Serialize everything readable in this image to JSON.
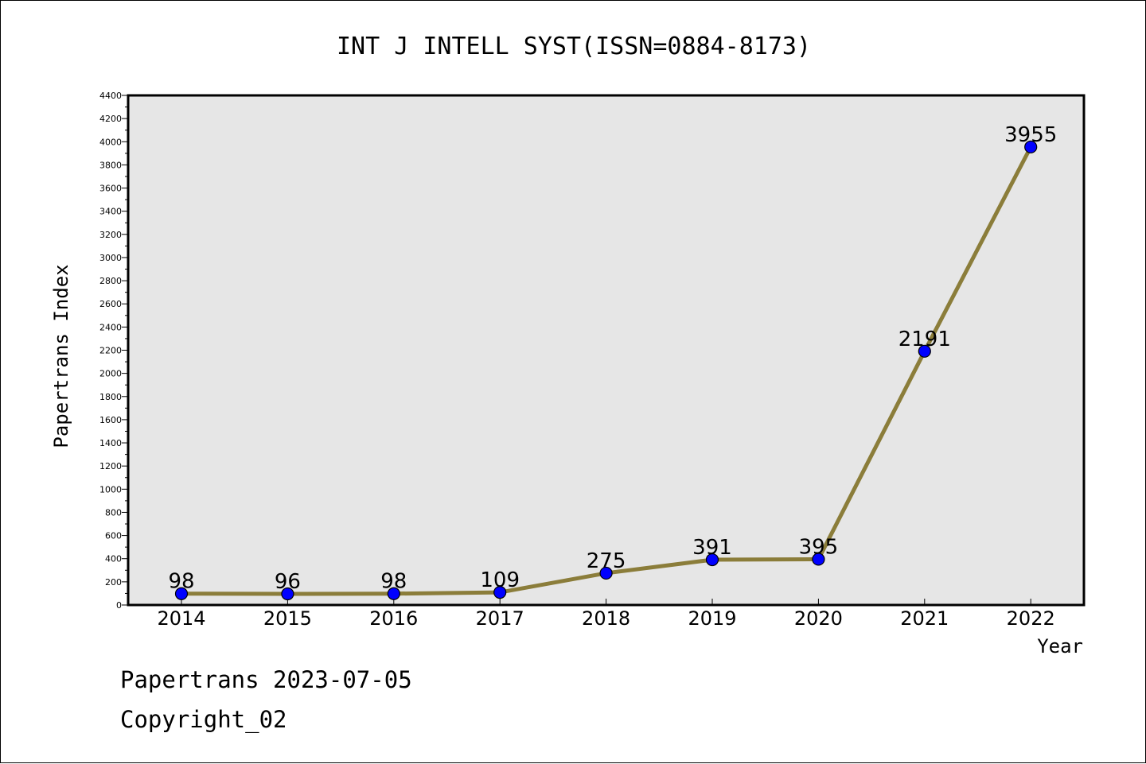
{
  "chart_data": {
    "type": "line",
    "title": "INT J INTELL SYST(ISSN=0884-8173)",
    "xlabel": "Year",
    "ylabel": "Papertrans Index",
    "categories": [
      "2014",
      "2015",
      "2016",
      "2017",
      "2018",
      "2019",
      "2020",
      "2021",
      "2022"
    ],
    "values": [
      98,
      96,
      98,
      109,
      275,
      391,
      395,
      2191,
      3955
    ],
    "ylim": [
      0,
      4400
    ],
    "ytick_step": 200,
    "grid": false,
    "legend": "none",
    "colors": {
      "line": "#8B7D3A",
      "marker": "#0000FF",
      "plot_background": "#E6E6E6"
    }
  },
  "footer": {
    "source": "Papertrans 2023-07-05",
    "copyright": "Copyright_02"
  }
}
